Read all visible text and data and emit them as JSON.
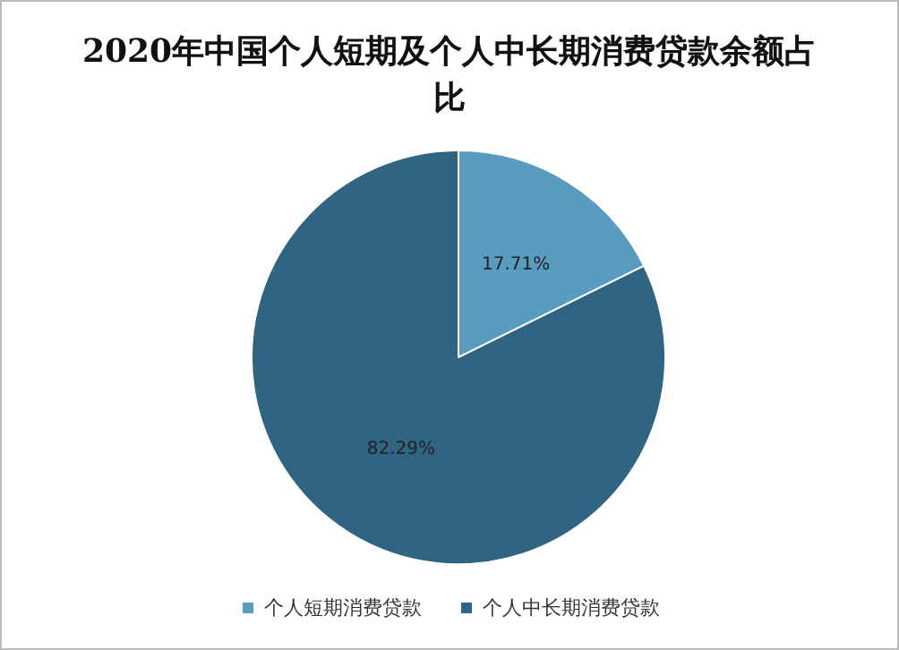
{
  "chart_data": {
    "type": "pie",
    "title": "2020年中国个人短期及个人中长期消费贷款余额占比",
    "categories": [
      "个人短期消费贷款",
      "个人中长期消费贷款"
    ],
    "values": [
      17.71,
      82.29
    ],
    "colors": [
      "#5a9cc0",
      "#2f6482"
    ],
    "value_labels": [
      "17.71%",
      "82.29%"
    ],
    "legend": "bottom"
  }
}
